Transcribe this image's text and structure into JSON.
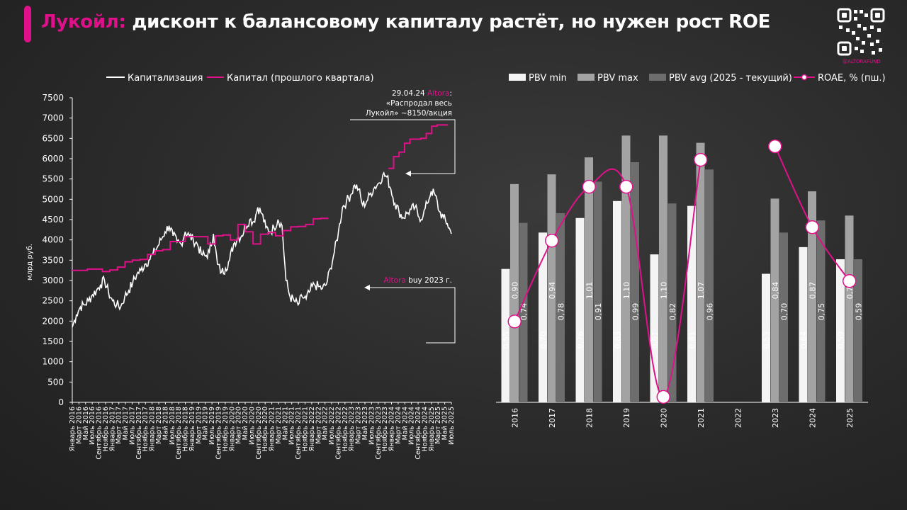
{
  "header": {
    "title_accent": "Лукойл:",
    "title_rest": " дисконт к балансовому капиталу растёт, но нужен рост ROE"
  },
  "brand": {
    "handle": "@ALTORAFUND",
    "accent_color": "#e0108a"
  },
  "chart_data": [
    {
      "type": "line",
      "ylabel": "млрд руб.",
      "ylim": [
        0,
        7500
      ],
      "yticks": [
        0,
        500,
        1000,
        1500,
        2000,
        2500,
        3000,
        3500,
        4000,
        4500,
        5000,
        5500,
        6000,
        6500,
        7000,
        7500
      ],
      "x_tick_labels": [
        "Январь 2016",
        "Март 2016",
        "Май 2016",
        "Июль 2016",
        "Сентябрь 2016",
        "Ноябрь 2016",
        "Январь 2017",
        "Март 2017",
        "Май 2017",
        "Июль 2017",
        "Сентябрь 2017",
        "Ноябрь 2017",
        "Январь 2018",
        "Март 2018",
        "Май 2018",
        "Июль 2018",
        "Сентябрь 2018",
        "Ноябрь 2018",
        "Январь 2019",
        "Март 2019",
        "Май 2019",
        "Июль 2019",
        "Сентябрь 2019",
        "Ноябрь 2019",
        "Январь 2020",
        "Март 2020",
        "Май 2020",
        "Июль 2020",
        "Сентябрь 2020",
        "Ноябрь 2020",
        "Январь 2021",
        "Март 2021",
        "Май 2021",
        "Июль 2021",
        "Сентябрь 2021",
        "Ноябрь 2021",
        "Январь 2022",
        "Март 2022",
        "Май 2022",
        "Июль 2022",
        "Сентябрь 2022",
        "Ноябрь 2022",
        "Январь 2023",
        "Март 2023",
        "Май 2023",
        "Июль 2023",
        "Сентябрь 2023",
        "Ноябрь 2023",
        "Январь 2024",
        "Март 2024",
        "Май 2024",
        "Июль 2024",
        "Сентябрь 2024",
        "Ноябрь 2024",
        "Январь 2025",
        "Март 2025",
        "Май 2025",
        "Июль 2025"
      ],
      "legend": [
        "Капитализация",
        "Капитал (прошлого квартала)"
      ],
      "series": [
        {
          "name": "Капитализация",
          "color": "#ffffff",
          "values": [
            1850,
            2150,
            2350,
            2400,
            2500,
            2650,
            2750,
            2900,
            3000,
            2700,
            2500,
            2400,
            2350,
            2600,
            2750,
            2950,
            3150,
            3250,
            3400,
            3500,
            3650,
            3800,
            4000,
            4200,
            4350,
            4100,
            3950,
            3900,
            4200,
            4100,
            4000,
            3900,
            3650,
            3600,
            3700,
            4150,
            3400,
            3200,
            3300,
            3500,
            3900,
            4050,
            4100,
            4350,
            4500,
            4450,
            4800,
            4650,
            4300,
            4200,
            4300,
            4500,
            4350,
            3000,
            2600,
            2500,
            2400,
            2600,
            2550,
            2750,
            2900,
            2850,
            2800,
            2900,
            3300,
            3700,
            4200,
            4800,
            4950,
            5100,
            5350,
            5250,
            4850,
            4950,
            5150,
            5300,
            5400,
            5600,
            5550,
            5250,
            4900,
            4700,
            4550,
            4650,
            4750,
            4800,
            4550,
            4600,
            4900,
            5200,
            5100,
            4700,
            4550,
            4400,
            4150
          ]
        },
        {
          "name": "Капитал (прошлого квартала)",
          "color": "#e0108a",
          "segment1": {
            "x_range_months": [
              0,
              77
            ],
            "values": [
              3250,
              3250,
              3280,
              3280,
              3220,
              3260,
              3330,
              3460,
              3500,
              3520,
              3640,
              3730,
              3760,
              3960,
              3960,
              4080,
              4080,
              4080,
              3900,
              4100,
              4120,
              4000,
              4380,
              4200,
              3900,
              4140,
              4180,
              4100,
              4230,
              4320,
              4330,
              4380,
              4520,
              4530
            ]
          },
          "segment2": {
            "x_range_months": [
              95,
              113
            ],
            "values": [
              5760,
              6050,
              6160,
              6380,
              6480,
              6480,
              6500,
              6620,
              6800,
              6830,
              6830
            ]
          }
        }
      ],
      "annotations": [
        {
          "lines": [
            "29.04.24 ",
            "Altora",
            ":",
            "«Распродал весь",
            "Лукойл» ~8150/акция"
          ]
        },
        {
          "lines": [
            "Altora",
            " buy 2023 г."
          ]
        }
      ]
    },
    {
      "type": "bar",
      "categories": [
        "2016",
        "2017",
        "2018",
        "2019",
        "2020",
        "2021",
        "2022",
        "2023",
        "2024",
        "2025"
      ],
      "legend": [
        "PBV min",
        "PBV max",
        "PBV avg (2025 - текущий)",
        "ROAE, % (пш.)"
      ],
      "series": [
        {
          "name": "PBV min",
          "color": "#f4f4f4",
          "values": [
            0.55,
            0.7,
            0.76,
            0.83,
            0.61,
            0.81,
            null,
            0.53,
            0.64,
            0.59
          ],
          "labels": [
            "0,55",
            "0,70",
            "0,76",
            "0,83",
            "0,61",
            "0,81",
            "",
            "0,53",
            "0,64",
            "0,59"
          ]
        },
        {
          "name": "PBV max",
          "color": "#a3a3a3",
          "values": [
            0.9,
            0.94,
            1.01,
            1.1,
            1.1,
            1.07,
            null,
            0.84,
            0.87,
            0.77
          ],
          "labels": [
            "0,90",
            "0,94",
            "1,01",
            "1,10",
            "1,10",
            "1,07",
            "",
            "0,84",
            "0,87",
            "0,77"
          ]
        },
        {
          "name": "PBV avg (2025 - текущий)",
          "color": "#6d6d6d",
          "values": [
            0.74,
            0.78,
            0.91,
            0.99,
            0.82,
            0.96,
            null,
            0.7,
            0.75,
            0.59
          ],
          "labels": [
            "0,74",
            "0,78",
            "0,91",
            "0,99",
            "0,82",
            "0,96",
            "",
            "0,70",
            "0,75",
            "0,59"
          ]
        },
        {
          "name": "ROAE, % (пш.)",
          "color": "#e0108a",
          "type": "line",
          "values": [
            6,
            12,
            16,
            16,
            0.4,
            18,
            null,
            19,
            13,
            9
          ],
          "labels": [
            "6",
            "12",
            "16",
            "16",
            "0,4",
            "18",
            "",
            "19",
            "13",
            "9"
          ]
        }
      ],
      "pbv_axis_max": 1.25,
      "roe_axis_max": 22.5
    }
  ]
}
